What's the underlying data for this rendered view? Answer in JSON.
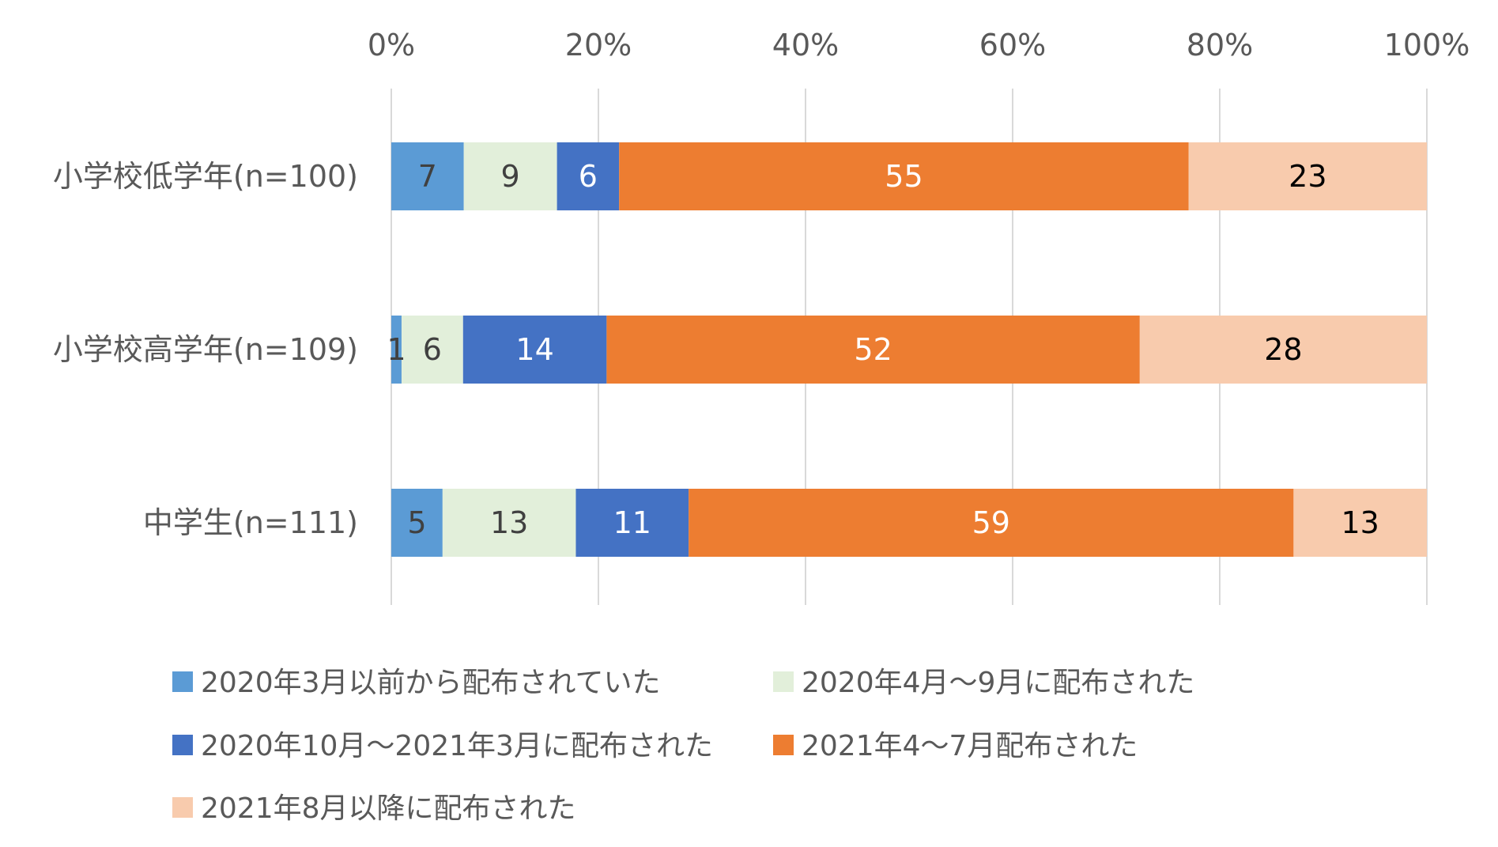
{
  "chart_data": {
    "type": "bar",
    "orientation": "horizontal",
    "stacked": "percent",
    "categories": [
      "小学校低学年(n=100)",
      "小学校高学年(n=109)",
      "中学生(n=111)"
    ],
    "x_tick_labels": [
      "0%",
      "20%",
      "40%",
      "60%",
      "80%",
      "100%"
    ],
    "xlim": [
      0,
      100
    ],
    "grid": true,
    "legend_position": "bottom",
    "series": [
      {
        "name": "2020年3月以前から配布されていた",
        "color": "#5b9bd5",
        "label_color": "#404040",
        "values": [
          7,
          1,
          5
        ]
      },
      {
        "name": "2020年4月～9月に配布された",
        "color": "#e2efda",
        "label_color": "#404040",
        "values": [
          9,
          6,
          13
        ]
      },
      {
        "name": "2020年10月～2021年3月に配布された",
        "color": "#4472c4",
        "label_color": "#ffffff",
        "values": [
          6,
          14,
          11
        ]
      },
      {
        "name": "2021年4～7月配布された",
        "color": "#ed7d31",
        "label_color": "#ffffff",
        "values": [
          55,
          52,
          59
        ]
      },
      {
        "name": "2021年8月以降に配布された",
        "color": "#f8cbad",
        "label_color": "#000000",
        "values": [
          23,
          28,
          13
        ]
      }
    ]
  }
}
